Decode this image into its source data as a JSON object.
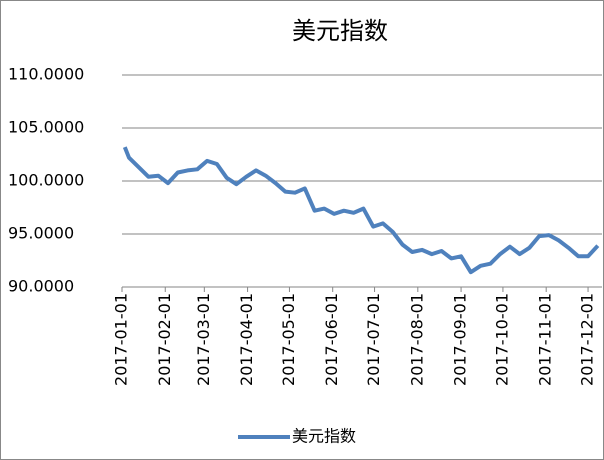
{
  "chart_data": {
    "type": "line",
    "title": "美元指数",
    "x": [
      "2017-01-03",
      "2017-01-06",
      "2017-01-13",
      "2017-01-20",
      "2017-01-27",
      "2017-02-03",
      "2017-02-10",
      "2017-02-17",
      "2017-02-24",
      "2017-03-03",
      "2017-03-10",
      "2017-03-17",
      "2017-03-24",
      "2017-03-31",
      "2017-04-07",
      "2017-04-14",
      "2017-04-21",
      "2017-04-28",
      "2017-05-05",
      "2017-05-12",
      "2017-05-19",
      "2017-05-26",
      "2017-06-02",
      "2017-06-09",
      "2017-06-16",
      "2017-06-23",
      "2017-06-30",
      "2017-07-07",
      "2017-07-14",
      "2017-07-21",
      "2017-07-28",
      "2017-08-04",
      "2017-08-11",
      "2017-08-18",
      "2017-08-25",
      "2017-09-01",
      "2017-09-08",
      "2017-09-15",
      "2017-09-22",
      "2017-09-29",
      "2017-10-06",
      "2017-10-13",
      "2017-10-20",
      "2017-10-27",
      "2017-11-03",
      "2017-11-10",
      "2017-11-17",
      "2017-11-24",
      "2017-12-01",
      "2017-12-08"
    ],
    "series": [
      {
        "name": "美元指数",
        "color": "#4f81bd",
        "values": [
          103.2,
          102.2,
          101.3,
          100.4,
          100.5,
          99.8,
          100.8,
          101.0,
          101.1,
          101.9,
          101.6,
          100.3,
          99.7,
          100.4,
          101.0,
          100.5,
          99.8,
          99.0,
          98.9,
          99.3,
          97.2,
          97.4,
          96.9,
          97.2,
          97.0,
          97.4,
          95.7,
          96.0,
          95.2,
          94.0,
          93.3,
          93.5,
          93.1,
          93.4,
          92.7,
          92.9,
          91.4,
          92.0,
          92.2,
          93.1,
          93.8,
          93.1,
          93.7,
          94.8,
          94.9,
          94.4,
          93.7,
          92.9,
          92.9,
          93.9
        ]
      }
    ],
    "xlim": [
      "2017-01-01",
      "2017-12-11"
    ],
    "xticks": [
      "2017-01-01",
      "2017-02-01",
      "2017-03-01",
      "2017-04-01",
      "2017-05-01",
      "2017-06-01",
      "2017-07-01",
      "2017-08-01",
      "2017-09-01",
      "2017-10-01",
      "2017-11-01",
      "2017-12-01"
    ],
    "ylim": [
      90,
      110
    ],
    "yticks": [
      {
        "value": 90,
        "label": "90.0000"
      },
      {
        "value": 95,
        "label": "95.0000"
      },
      {
        "value": 100,
        "label": "100.0000"
      },
      {
        "value": 105,
        "label": "105.0000"
      },
      {
        "value": 110,
        "label": "110.0000"
      }
    ],
    "grid": true
  }
}
